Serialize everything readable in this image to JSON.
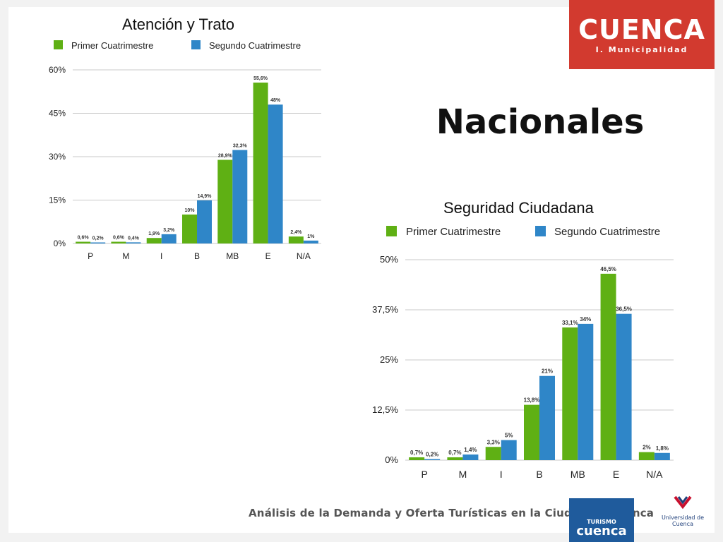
{
  "heading": "Nacionales",
  "logo": {
    "word": "CUENCA",
    "subtitle": "I. Municipalidad",
    "color": "#d23a2f"
  },
  "footer": {
    "text": "Análisis de la Demanda y Oferta Turísticas en la Ciudad de Cuenca",
    "logo_small": "TURISMO",
    "logo_big": "cuenca",
    "university": "Universidad de Cuenca"
  },
  "colors": {
    "primer": "#5fb014",
    "segundo": "#2f86c8",
    "grid": "#c8c8c8"
  },
  "chart_data": [
    {
      "type": "bar",
      "title": "Atención y Trato",
      "categories": [
        "P",
        "M",
        "I",
        "B",
        "MB",
        "E",
        "N/A"
      ],
      "series": [
        {
          "name": "Primer Cuatrimestre",
          "values": [
            0.6,
            0.6,
            1.9,
            10,
            28.9,
            55.6,
            2.4
          ],
          "labels": [
            "0,6%",
            "0,6%",
            "1,9%",
            "10%",
            "28,9%",
            "55,6%",
            "2,4%"
          ]
        },
        {
          "name": "Segundo Cuatrimestre",
          "values": [
            0.2,
            0.4,
            3.2,
            14.9,
            32.3,
            48,
            1
          ],
          "labels": [
            "0,2%",
            "0,4%",
            "3,2%",
            "14,9%",
            "32,3%",
            "48%",
            "1%"
          ]
        }
      ],
      "ylim": [
        0,
        60
      ],
      "yticks": [
        0,
        15,
        30,
        45,
        60
      ],
      "ytick_labels": [
        "0%",
        "15%",
        "30%",
        "45%",
        "60%"
      ],
      "grid": true,
      "legend": "top"
    },
    {
      "type": "bar",
      "title": "Seguridad Ciudadana",
      "categories": [
        "P",
        "M",
        "I",
        "B",
        "MB",
        "E",
        "N/A"
      ],
      "series": [
        {
          "name": "Primer Cuatrimestre",
          "values": [
            0.7,
            0.7,
            3.3,
            13.8,
            33.1,
            46.5,
            2
          ],
          "labels": [
            "0,7%",
            "0,7%",
            "3,3%",
            "13,8%",
            "33,1%",
            "46,5%",
            "2%"
          ]
        },
        {
          "name": "Segundo Cuatrimestre",
          "values": [
            0.2,
            1.4,
            5,
            21,
            34,
            36.5,
            1.8
          ],
          "labels": [
            "0,2%",
            "1,4%",
            "5%",
            "21%",
            "34%",
            "36,5%",
            "1,8%"
          ]
        }
      ],
      "ylim": [
        0,
        50
      ],
      "yticks": [
        0,
        12.5,
        25,
        37.5,
        50
      ],
      "ytick_labels": [
        "0%",
        "12,5%",
        "25%",
        "37,5%",
        "50%"
      ],
      "grid": true,
      "legend": "top"
    }
  ]
}
